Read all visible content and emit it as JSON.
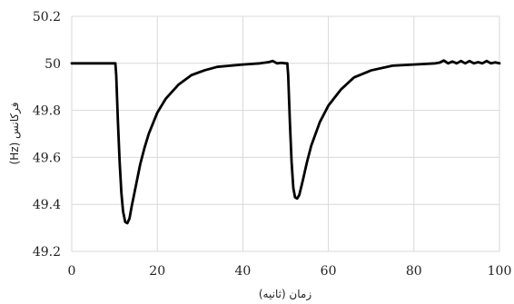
{
  "chart_data": {
    "type": "line",
    "title": "",
    "xlabel": "(زمان (ثانیه",
    "ylabel": "(Hz) فرکانس",
    "xlim": [
      0,
      100
    ],
    "ylim": [
      49.2,
      50.2
    ],
    "x_ticks": [
      0,
      20,
      40,
      60,
      80,
      100
    ],
    "y_ticks": [
      49.2,
      49.4,
      49.6,
      49.8,
      50,
      50.2
    ],
    "x_tick_labels": [
      "0",
      "20",
      "40",
      "60",
      "80",
      "100"
    ],
    "y_tick_labels": [
      "49.2",
      "49.4",
      "49.6",
      "49.8",
      "50",
      "50.2"
    ],
    "grid": true,
    "series": [
      {
        "color": "#000000",
        "points": [
          [
            0,
            50.0
          ],
          [
            2,
            50.0
          ],
          [
            4,
            50.0
          ],
          [
            6,
            50.0
          ],
          [
            8,
            50.0
          ],
          [
            10.2,
            50.0
          ],
          [
            10.4,
            49.95
          ],
          [
            10.8,
            49.75
          ],
          [
            11.2,
            49.58
          ],
          [
            11.6,
            49.45
          ],
          [
            12.0,
            49.37
          ],
          [
            12.5,
            49.325
          ],
          [
            13.0,
            49.32
          ],
          [
            13.5,
            49.34
          ],
          [
            14.0,
            49.39
          ],
          [
            15.0,
            49.48
          ],
          [
            16.0,
            49.57
          ],
          [
            17.0,
            49.64
          ],
          [
            18.0,
            49.7
          ],
          [
            20.0,
            49.79
          ],
          [
            22.0,
            49.85
          ],
          [
            25.0,
            49.91
          ],
          [
            28.0,
            49.95
          ],
          [
            31.0,
            49.97
          ],
          [
            34.0,
            49.985
          ],
          [
            37.0,
            49.99
          ],
          [
            40.0,
            49.995
          ],
          [
            44.0,
            50.0
          ],
          [
            46.0,
            50.005
          ],
          [
            47.0,
            50.01
          ],
          [
            48.0,
            50.0
          ],
          [
            49.0,
            50.002
          ],
          [
            50.0,
            50.0
          ],
          [
            50.4,
            50.0
          ],
          [
            50.6,
            49.95
          ],
          [
            51.0,
            49.75
          ],
          [
            51.4,
            49.58
          ],
          [
            51.8,
            49.47
          ],
          [
            52.2,
            49.43
          ],
          [
            52.7,
            49.425
          ],
          [
            53.2,
            49.44
          ],
          [
            54.0,
            49.5
          ],
          [
            55.0,
            49.58
          ],
          [
            56.0,
            49.65
          ],
          [
            58.0,
            49.75
          ],
          [
            60.0,
            49.82
          ],
          [
            63.0,
            49.89
          ],
          [
            66.0,
            49.94
          ],
          [
            70.0,
            49.97
          ],
          [
            75.0,
            49.99
          ],
          [
            80.0,
            49.995
          ],
          [
            85.0,
            50.0
          ],
          [
            86.0,
            50.003
          ],
          [
            87.0,
            50.012
          ],
          [
            88.0,
            50.0
          ],
          [
            89.0,
            50.008
          ],
          [
            90.0,
            50.0
          ],
          [
            91.0,
            50.01
          ],
          [
            92.0,
            50.0
          ],
          [
            93.0,
            50.01
          ],
          [
            94.0,
            50.0
          ],
          [
            95.0,
            50.005
          ],
          [
            96.0,
            50.0
          ],
          [
            97.0,
            50.01
          ],
          [
            98.0,
            50.0
          ],
          [
            99.0,
            50.004
          ],
          [
            100.0,
            50.0
          ]
        ]
      }
    ]
  }
}
